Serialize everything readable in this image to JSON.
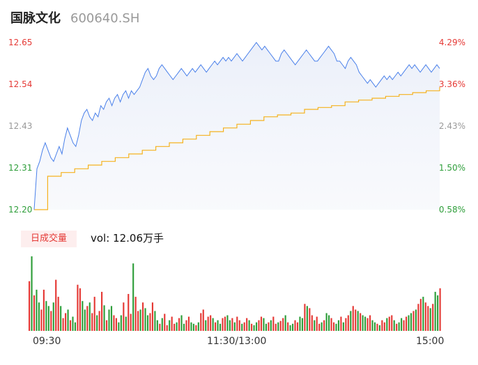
{
  "header": {
    "name": "国脉文化",
    "code": "600640.SH"
  },
  "colors": {
    "up": "#e53935",
    "down": "#2e9e3a",
    "neutral": "#999999",
    "price_line": "#4a80ea",
    "avg_line": "#f5b21e"
  },
  "volume_panel": {
    "badge": "日成交量",
    "vol_text": "vol: 12.06万手"
  },
  "chart_data": [
    {
      "type": "line",
      "title": "",
      "x_ticks": [
        "09:30",
        "11:30/13:00",
        "15:00"
      ],
      "y_ticks_left": [
        "12.65",
        "12.54",
        "12.43",
        "12.31",
        "12.20"
      ],
      "y_ticks_right": [
        "4.29%",
        "3.36%",
        "2.43%",
        "1.50%",
        "0.58%"
      ],
      "ylim": [
        12.2,
        12.65
      ],
      "series": [
        {
          "values": [
            12.2,
            12.31,
            12.33,
            12.36,
            12.38,
            12.36,
            12.34,
            12.33,
            12.35,
            12.37,
            12.35,
            12.39,
            12.42,
            12.4,
            12.38,
            12.37,
            12.4,
            12.44,
            12.46,
            12.47,
            12.45,
            12.44,
            12.46,
            12.45,
            12.48,
            12.47,
            12.49,
            12.5,
            12.48,
            12.5,
            12.51,
            12.49,
            12.51,
            12.52,
            12.5,
            12.52,
            12.51,
            12.52,
            12.53,
            12.55,
            12.57,
            12.58,
            12.56,
            12.55,
            12.56,
            12.58,
            12.59,
            12.58,
            12.57,
            12.56,
            12.55,
            12.56,
            12.57,
            12.58,
            12.57,
            12.56,
            12.57,
            12.58,
            12.57,
            12.58,
            12.59,
            12.58,
            12.57,
            12.58,
            12.59,
            12.6,
            12.59,
            12.6,
            12.61,
            12.6,
            12.61,
            12.6,
            12.61,
            12.62,
            12.61,
            12.6,
            12.61,
            12.62,
            12.63,
            12.64,
            12.65,
            12.64,
            12.63,
            12.64,
            12.63,
            12.62,
            12.61,
            12.6,
            12.6,
            12.62,
            12.63,
            12.62,
            12.61,
            12.6,
            12.59,
            12.6,
            12.61,
            12.62,
            12.63,
            12.62,
            12.61,
            12.6,
            12.6,
            12.61,
            12.62,
            12.63,
            12.64,
            12.63,
            12.62,
            12.6,
            12.6,
            12.59,
            12.58,
            12.6,
            12.61,
            12.6,
            12.59,
            12.57,
            12.56,
            12.55,
            12.54,
            12.55,
            12.54,
            12.53,
            12.54,
            12.55,
            12.56,
            12.55,
            12.56,
            12.55,
            12.56,
            12.57,
            12.56,
            12.57,
            12.58,
            12.59,
            12.58,
            12.59,
            12.58,
            12.57,
            12.58,
            12.59,
            12.58,
            12.57,
            12.58,
            12.59,
            12.58
          ],
          "color": "#4a80ea"
        },
        {
          "values": [
            12.2,
            12.29,
            12.3,
            12.31,
            12.32,
            12.33,
            12.34,
            12.35,
            12.36,
            12.37,
            12.38,
            12.39,
            12.4,
            12.41,
            12.42,
            12.43,
            12.44,
            12.45,
            12.455,
            12.46,
            12.47,
            12.475,
            12.48,
            12.49,
            12.495,
            12.5,
            12.505,
            12.51,
            12.515,
            12.52,
            12.53
          ],
          "color": "#f5b21e"
        }
      ]
    },
    {
      "type": "bar",
      "title": "",
      "series": [
        {
          "values": [
            70,
            105,
            50,
            58,
            40,
            30,
            58,
            42,
            35,
            28,
            40,
            72,
            48,
            35,
            18,
            25,
            30,
            15,
            20,
            12,
            65,
            60,
            42,
            30,
            35,
            40,
            25,
            48,
            22,
            28,
            55,
            36,
            15,
            30,
            35,
            22,
            18,
            12,
            22,
            40,
            20,
            52,
            24,
            95,
            48,
            28,
            30,
            40,
            32,
            22,
            25,
            40,
            28,
            15,
            10,
            18,
            24,
            8,
            15,
            20,
            10,
            12,
            18,
            22,
            10,
            15,
            20,
            12,
            10,
            8,
            12,
            25,
            30,
            15,
            20,
            22,
            18,
            12,
            15,
            10,
            18,
            20,
            22,
            15,
            18,
            12,
            20,
            15,
            10,
            12,
            18,
            15,
            10,
            8,
            12,
            15,
            20,
            18,
            10,
            12,
            15,
            20,
            10,
            12,
            14,
            18,
            22,
            12,
            8,
            10,
            15,
            12,
            20,
            18,
            38,
            35,
            32,
            22,
            15,
            20,
            10,
            12,
            15,
            25,
            22,
            18,
            12,
            10,
            15,
            20,
            12,
            18,
            22,
            28,
            35,
            30,
            28,
            25,
            22,
            20,
            18,
            22,
            15,
            12,
            10,
            8,
            15,
            12,
            18,
            20,
            22,
            15,
            10,
            12,
            18,
            15,
            20,
            22,
            25,
            28,
            30,
            38,
            45,
            48,
            40,
            35,
            32,
            38,
            55,
            50,
            60
          ]
        }
      ]
    }
  ]
}
